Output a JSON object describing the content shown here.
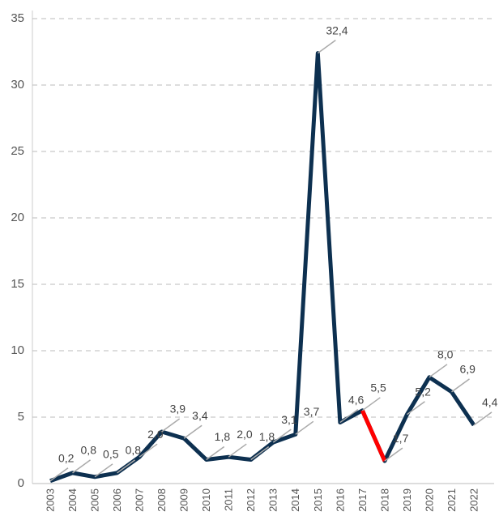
{
  "chart_data": {
    "type": "line",
    "categories": [
      "2003",
      "2004",
      "2005",
      "2006",
      "2007",
      "2008",
      "2009",
      "2010",
      "2011",
      "2012",
      "2013",
      "2014",
      "2015",
      "2016",
      "2017",
      "2018",
      "2019",
      "2020",
      "2021",
      "2022"
    ],
    "series": [
      {
        "color": "#0d3050",
        "values": [
          0.2,
          0.8,
          0.5,
          0.8,
          2.0,
          3.9,
          3.4,
          1.8,
          2.0,
          1.8,
          3.1,
          3.7,
          32.4,
          4.6,
          5.5,
          1.7,
          5.2,
          8.0,
          6.9,
          4.4
        ],
        "value_labels": [
          "0,2",
          "0,8",
          "0,5",
          "0,8",
          "2,0",
          "3,9",
          "3,4",
          "1,8",
          "2,0",
          "1,8",
          "3,1",
          "3,7",
          "32,4",
          "4,6",
          "5,5",
          "1,7",
          "5,2",
          "8,0",
          "6,9",
          "4,4"
        ]
      }
    ],
    "highlight": {
      "from": "2017",
      "to": "2018",
      "color": "#ff0000"
    },
    "ylim": [
      0,
      35
    ],
    "yticks": [
      0,
      5,
      10,
      15,
      20,
      25,
      30,
      35
    ],
    "grid": true
  }
}
